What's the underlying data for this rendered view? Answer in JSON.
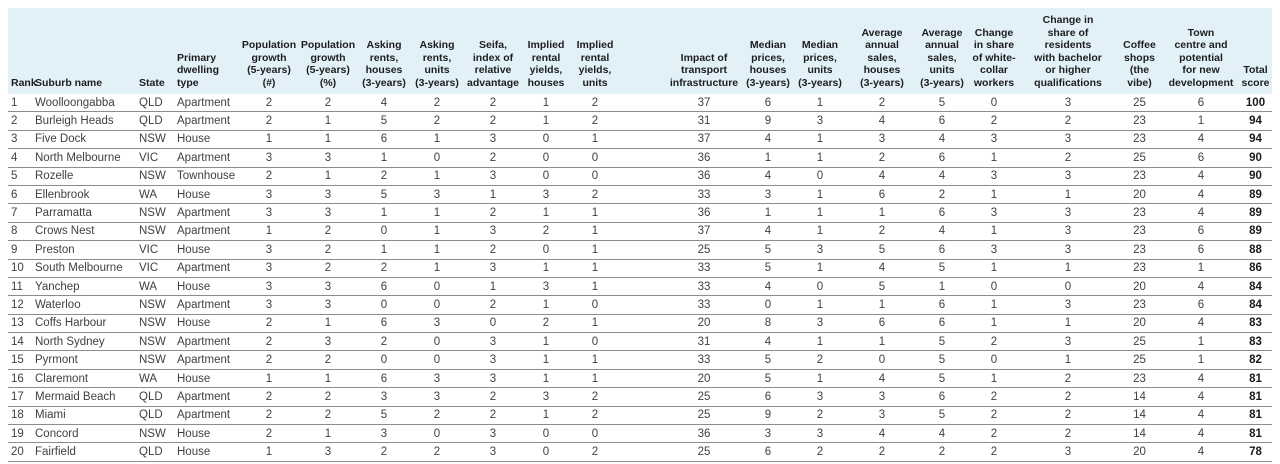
{
  "colors": {
    "header_bg": "#e2f1f7",
    "header_text": "#1d1d1f",
    "body_text": "#414042",
    "row_border": "#8c8c8c",
    "total_text": "#1a1a1a"
  },
  "table": {
    "columns": [
      {
        "id": "rank",
        "label": "Rank",
        "align": "left"
      },
      {
        "id": "suburb-name",
        "label": "Suburb name",
        "align": "left"
      },
      {
        "id": "state",
        "label": "State",
        "align": "left"
      },
      {
        "id": "dwelling-type",
        "label": "Primary\ndwelling\ntype",
        "align": "left"
      },
      {
        "id": "pop-growth-number",
        "label": "Population\ngrowth\n(5-years)\n(#)",
        "align": "center"
      },
      {
        "id": "pop-growth-percent",
        "label": "Population\ngrowth\n(5-years)\n(%)",
        "align": "center"
      },
      {
        "id": "asking-rents-houses",
        "label": "Asking\nrents,\nhouses\n(3-years)",
        "align": "center"
      },
      {
        "id": "asking-rents-units",
        "label": "Asking\nrents,\nunits\n(3-years)",
        "align": "center"
      },
      {
        "id": "seifa-index",
        "label": "Seifa,\nindex of\nrelative\nadvantage",
        "align": "center"
      },
      {
        "id": "implied-rental-yields-houses",
        "label": "Implied\nrental\nyields,\nhouses",
        "align": "center"
      },
      {
        "id": "implied-rental-yields-units",
        "label": "Implied\nrental\nyields,\nunits",
        "align": "center"
      },
      {
        "id": "spacer",
        "label": "",
        "align": "center"
      },
      {
        "id": "transport-infrastructure",
        "label": "Impact of\ntransport\ninfrastructure",
        "align": "center"
      },
      {
        "id": "median-prices-houses",
        "label": "Median\nprices,\nhouses\n(3-years)",
        "align": "center"
      },
      {
        "id": "median-prices-units",
        "label": "Median\nprices,\nunits\n(3-years)",
        "align": "center"
      },
      {
        "id": "avg-annual-sales-houses",
        "label": "Average\nannual\nsales,\nhouses\n(3-years)",
        "align": "center"
      },
      {
        "id": "avg-annual-sales-units",
        "label": "Average\nannual\nsales,\nunits\n(3-years)",
        "align": "center"
      },
      {
        "id": "white-collar-workers",
        "label": "Change\nin share\nof white-\ncollar\nworkers",
        "align": "center"
      },
      {
        "id": "bachelor-qualifications",
        "label": "Change in\nshare of\nresidents\nwith bachelor\nor higher\nqualifications",
        "align": "center"
      },
      {
        "id": "coffee-shops",
        "label": "Coffee\nshops\n(the vibe)",
        "align": "center"
      },
      {
        "id": "town-centre",
        "label": "Town\ncentre and\npotential\nfor new\ndevelopment",
        "align": "center"
      },
      {
        "id": "total-score",
        "label": "Total\nscore",
        "align": "center"
      }
    ],
    "rows": [
      {
        "rank": "1",
        "suburb": "Woolloongabba",
        "state": "QLD",
        "dwelling": "Apartment",
        "values": [
          "2",
          "2",
          "4",
          "2",
          "2",
          "1",
          "2",
          "37",
          "6",
          "1",
          "2",
          "5",
          "0",
          "3",
          "25",
          "6"
        ],
        "total": "100"
      },
      {
        "rank": "2",
        "suburb": "Burleigh Heads",
        "state": "QLD",
        "dwelling": "Apartment",
        "values": [
          "2",
          "1",
          "5",
          "2",
          "2",
          "1",
          "2",
          "31",
          "9",
          "3",
          "4",
          "6",
          "2",
          "2",
          "23",
          "1"
        ],
        "total": "94"
      },
      {
        "rank": "3",
        "suburb": "Five Dock",
        "state": "NSW",
        "dwelling": "House",
        "values": [
          "1",
          "1",
          "6",
          "1",
          "3",
          "0",
          "1",
          "37",
          "4",
          "1",
          "3",
          "4",
          "3",
          "3",
          "23",
          "4"
        ],
        "total": "94"
      },
      {
        "rank": "4",
        "suburb": "North Melbourne",
        "state": "VIC",
        "dwelling": "Apartment",
        "values": [
          "3",
          "3",
          "1",
          "0",
          "2",
          "0",
          "0",
          "36",
          "1",
          "1",
          "2",
          "6",
          "1",
          "2",
          "25",
          "6"
        ],
        "total": "90"
      },
      {
        "rank": "5",
        "suburb": "Rozelle",
        "state": "NSW",
        "dwelling": "Townhouse",
        "values": [
          "2",
          "1",
          "2",
          "1",
          "3",
          "0",
          "0",
          "36",
          "4",
          "0",
          "4",
          "4",
          "3",
          "3",
          "23",
          "4"
        ],
        "total": "90"
      },
      {
        "rank": "6",
        "suburb": "Ellenbrook",
        "state": "WA",
        "dwelling": "House",
        "values": [
          "3",
          "3",
          "5",
          "3",
          "1",
          "3",
          "2",
          "33",
          "3",
          "1",
          "6",
          "2",
          "1",
          "1",
          "20",
          "4"
        ],
        "total": "89"
      },
      {
        "rank": "7",
        "suburb": "Parramatta",
        "state": "NSW",
        "dwelling": "Apartment",
        "values": [
          "3",
          "3",
          "1",
          "1",
          "2",
          "1",
          "1",
          "36",
          "1",
          "1",
          "1",
          "6",
          "3",
          "3",
          "23",
          "4"
        ],
        "total": "89"
      },
      {
        "rank": "8",
        "suburb": "Crows Nest",
        "state": "NSW",
        "dwelling": "Apartment",
        "values": [
          "1",
          "2",
          "0",
          "1",
          "3",
          "2",
          "1",
          "37",
          "4",
          "1",
          "2",
          "4",
          "1",
          "3",
          "23",
          "6"
        ],
        "total": "89"
      },
      {
        "rank": "9",
        "suburb": "Preston",
        "state": "VIC",
        "dwelling": "House",
        "values": [
          "3",
          "2",
          "1",
          "1",
          "2",
          "0",
          "1",
          "25",
          "5",
          "3",
          "5",
          "6",
          "3",
          "3",
          "23",
          "6"
        ],
        "total": "88"
      },
      {
        "rank": "10",
        "suburb": "South Melbourne",
        "state": "VIC",
        "dwelling": "Apartment",
        "values": [
          "3",
          "2",
          "2",
          "1",
          "3",
          "1",
          "1",
          "33",
          "5",
          "1",
          "4",
          "5",
          "1",
          "1",
          "23",
          "1"
        ],
        "total": "86"
      },
      {
        "rank": "11",
        "suburb": "Yanchep",
        "state": "WA",
        "dwelling": "House",
        "values": [
          "3",
          "3",
          "6",
          "0",
          "1",
          "3",
          "1",
          "33",
          "4",
          "0",
          "5",
          "1",
          "0",
          "0",
          "20",
          "4"
        ],
        "total": "84"
      },
      {
        "rank": "12",
        "suburb": "Waterloo",
        "state": "NSW",
        "dwelling": "Apartment",
        "values": [
          "3",
          "3",
          "0",
          "0",
          "2",
          "1",
          "0",
          "33",
          "0",
          "1",
          "1",
          "6",
          "1",
          "3",
          "23",
          "6"
        ],
        "total": "84"
      },
      {
        "rank": "13",
        "suburb": "Coffs Harbour",
        "state": "NSW",
        "dwelling": "House",
        "values": [
          "2",
          "1",
          "6",
          "3",
          "0",
          "2",
          "1",
          "20",
          "8",
          "3",
          "6",
          "6",
          "1",
          "1",
          "20",
          "4"
        ],
        "total": "83"
      },
      {
        "rank": "14",
        "suburb": "North Sydney",
        "state": "NSW",
        "dwelling": "Apartment",
        "values": [
          "2",
          "3",
          "2",
          "0",
          "3",
          "1",
          "0",
          "31",
          "4",
          "1",
          "1",
          "5",
          "2",
          "3",
          "25",
          "1"
        ],
        "total": "83"
      },
      {
        "rank": "15",
        "suburb": "Pyrmont",
        "state": "NSW",
        "dwelling": "Apartment",
        "values": [
          "2",
          "2",
          "0",
          "0",
          "3",
          "1",
          "1",
          "33",
          "5",
          "2",
          "0",
          "5",
          "0",
          "1",
          "25",
          "1"
        ],
        "total": "82"
      },
      {
        "rank": "16",
        "suburb": "Claremont",
        "state": "WA",
        "dwelling": "House",
        "values": [
          "1",
          "1",
          "6",
          "3",
          "3",
          "1",
          "1",
          "20",
          "5",
          "1",
          "4",
          "5",
          "1",
          "2",
          "23",
          "4"
        ],
        "total": "81"
      },
      {
        "rank": "17",
        "suburb": "Mermaid Beach",
        "state": "QLD",
        "dwelling": "Apartment",
        "values": [
          "2",
          "2",
          "3",
          "3",
          "2",
          "3",
          "2",
          "25",
          "6",
          "3",
          "3",
          "6",
          "2",
          "2",
          "14",
          "4"
        ],
        "total": "81"
      },
      {
        "rank": "18",
        "suburb": "Miami",
        "state": "QLD",
        "dwelling": "Apartment",
        "values": [
          "2",
          "2",
          "5",
          "2",
          "2",
          "1",
          "2",
          "25",
          "9",
          "2",
          "3",
          "5",
          "2",
          "2",
          "14",
          "4"
        ],
        "total": "81"
      },
      {
        "rank": "19",
        "suburb": "Concord",
        "state": "NSW",
        "dwelling": "House",
        "values": [
          "2",
          "1",
          "3",
          "0",
          "3",
          "0",
          "0",
          "36",
          "3",
          "3",
          "4",
          "4",
          "2",
          "2",
          "14",
          "4"
        ],
        "total": "81"
      },
      {
        "rank": "20",
        "suburb": "Fairfield",
        "state": "QLD",
        "dwelling": "House",
        "values": [
          "1",
          "3",
          "2",
          "2",
          "3",
          "0",
          "2",
          "25",
          "6",
          "2",
          "2",
          "2",
          "2",
          "3",
          "20",
          "4"
        ],
        "total": "78"
      }
    ]
  }
}
